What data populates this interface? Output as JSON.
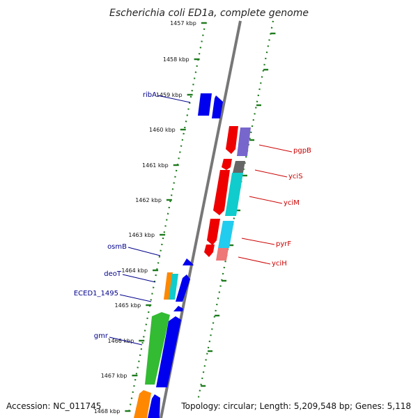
{
  "title": "Escherichia coli ED1a, complete genome",
  "footer": {
    "accession": "Accession: NC_011745",
    "summary": "Topology: circular; Length: 5,209,548 bp; Genes: 5,118"
  },
  "colors": {
    "forward_label": "#00008b",
    "reverse_label": "#cc0000",
    "tick": "#1e7b1e",
    "backbone": "#777777"
  },
  "ticks": [
    "1457 kbp",
    "1458 kbp",
    "1459 kbp",
    "1460 kbp",
    "1461 kbp",
    "1462 kbp",
    "1463 kbp",
    "1464 kbp",
    "1465 kbp",
    "1466 kbp",
    "1467 kbp",
    "1468 kbp"
  ],
  "genes": [
    {
      "label": "ribA",
      "strand": "forward",
      "color": "#0000ee"
    },
    {
      "label": "",
      "strand": "forward",
      "color": "#0000ee"
    },
    {
      "label": "pgpB",
      "strand": "reverse",
      "color": "#ee0000"
    },
    {
      "label": "",
      "strand": "reverse",
      "color": "#7766cc"
    },
    {
      "label": "yciS",
      "strand": "reverse",
      "color": "#ee0000"
    },
    {
      "label": "",
      "strand": "reverse",
      "color": "#666666"
    },
    {
      "label": "yciM",
      "strand": "reverse",
      "color": "#ee0000"
    },
    {
      "label": "",
      "strand": "reverse",
      "color": "#11cccc"
    },
    {
      "label": "pyrF",
      "strand": "reverse",
      "color": "#ee0000"
    },
    {
      "label": "",
      "strand": "reverse",
      "color": "#22ccee"
    },
    {
      "label": "yciH",
      "strand": "reverse",
      "color": "#ee0000"
    },
    {
      "label": "",
      "strand": "reverse",
      "color": "#ee7777"
    },
    {
      "label": "osmB",
      "strand": "forward",
      "color": "#0000ee"
    },
    {
      "label": "deoT",
      "strand": "forward",
      "color": "#ff8800"
    },
    {
      "label": "",
      "strand": "forward",
      "color": "#11cccc"
    },
    {
      "label": "",
      "strand": "forward",
      "color": "#0000ee"
    },
    {
      "label": "ECED1_1495",
      "strand": "forward",
      "color": "#0000ee"
    },
    {
      "label": "gmr",
      "strand": "forward",
      "color": "#33bb33"
    },
    {
      "label": "",
      "strand": "forward",
      "color": "#0000ee"
    },
    {
      "label": "",
      "strand": "forward",
      "color": "#ff8800"
    },
    {
      "label": "",
      "strand": "forward",
      "color": "#0000ee"
    }
  ]
}
